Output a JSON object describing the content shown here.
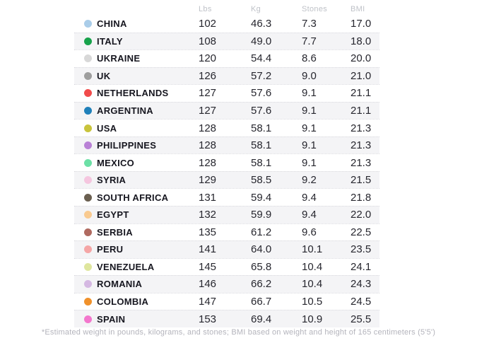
{
  "chart_data": {
    "type": "table",
    "columns": [
      "Lbs",
      "Kg",
      "Stones",
      "BMI"
    ],
    "rows": [
      {
        "country": "CHINA",
        "color": "#aacde9",
        "lbs": "102",
        "kg": "46.3",
        "stones": "7.3",
        "bmi": "17.0"
      },
      {
        "country": "ITALY",
        "color": "#17a24b",
        "lbs": "108",
        "kg": "49.0",
        "stones": "7.7",
        "bmi": "18.0"
      },
      {
        "country": "UKRAINE",
        "color": "#d8d8d8",
        "lbs": "120",
        "kg": "54.4",
        "stones": "8.6",
        "bmi": "20.0"
      },
      {
        "country": "UK",
        "color": "#9e9e9e",
        "lbs": "126",
        "kg": "57.2",
        "stones": "9.0",
        "bmi": "21.0"
      },
      {
        "country": "NETHERLANDS",
        "color": "#f14b4b",
        "lbs": "127",
        "kg": "57.6",
        "stones": "9.1",
        "bmi": "21.1"
      },
      {
        "country": "ARGENTINA",
        "color": "#1f80ba",
        "lbs": "127",
        "kg": "57.6",
        "stones": "9.1",
        "bmi": "21.1"
      },
      {
        "country": "USA",
        "color": "#c9c43c",
        "lbs": "128",
        "kg": "58.1",
        "stones": "9.1",
        "bmi": "21.3"
      },
      {
        "country": "PHILIPPINES",
        "color": "#b981d6",
        "lbs": "128",
        "kg": "58.1",
        "stones": "9.1",
        "bmi": "21.3"
      },
      {
        "country": "MEXICO",
        "color": "#6ce0a6",
        "lbs": "128",
        "kg": "58.1",
        "stones": "9.1",
        "bmi": "21.3"
      },
      {
        "country": "SYRIA",
        "color": "#f5c6df",
        "lbs": "129",
        "kg": "58.5",
        "stones": "9.2",
        "bmi": "21.5"
      },
      {
        "country": "SOUTH AFRICA",
        "color": "#6a5f50",
        "lbs": "131",
        "kg": "59.4",
        "stones": "9.4",
        "bmi": "21.8"
      },
      {
        "country": "EGYPT",
        "color": "#f9ca90",
        "lbs": "132",
        "kg": "59.9",
        "stones": "9.4",
        "bmi": "22.0"
      },
      {
        "country": "SERBIA",
        "color": "#b06a60",
        "lbs": "135",
        "kg": "61.2",
        "stones": "9.6",
        "bmi": "22.5"
      },
      {
        "country": "PERU",
        "color": "#f5a6a6",
        "lbs": "141",
        "kg": "64.0",
        "stones": "10.1",
        "bmi": "23.5"
      },
      {
        "country": "VENEZUELA",
        "color": "#dfe69e",
        "lbs": "145",
        "kg": "65.8",
        "stones": "10.4",
        "bmi": "24.1"
      },
      {
        "country": "ROMANIA",
        "color": "#d5b8e2",
        "lbs": "146",
        "kg": "66.2",
        "stones": "10.4",
        "bmi": "24.3"
      },
      {
        "country": "COLOMBIA",
        "color": "#f0912b",
        "lbs": "147",
        "kg": "66.7",
        "stones": "10.5",
        "bmi": "24.5"
      },
      {
        "country": "SPAIN",
        "color": "#f377cd",
        "lbs": "153",
        "kg": "69.4",
        "stones": "10.9",
        "bmi": "25.5"
      }
    ],
    "footnote": "*Estimated weight in pounds, kilograms, and stones; BMI based on weight and height of 165 centimeters (5'5')",
    "layout": {
      "stripe_color": "#f4f4f6",
      "separator_color": "#d9d9de",
      "header_text_color": "#bfc2c8",
      "body_text_color": "#26262e",
      "country_text_color": "#16161f",
      "footnote_color": "#b4b4bc",
      "legend_position": "none",
      "grid": "dotted row separators"
    }
  }
}
